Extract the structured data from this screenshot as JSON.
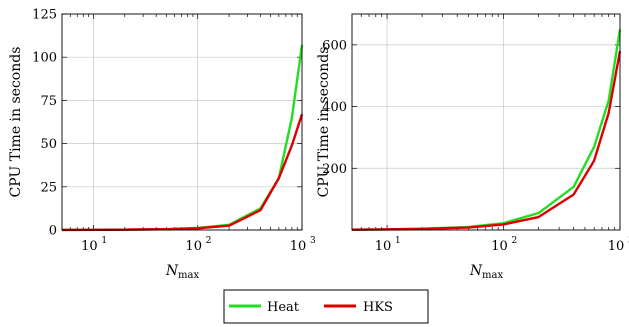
{
  "chart_data": [
    {
      "type": "line",
      "ylabel": "CPU Time in seconds",
      "xlabel_main": "N",
      "xlabel_sub": "max",
      "xscale": "log",
      "xlim": [
        5,
        1000
      ],
      "ylim": [
        0,
        125
      ],
      "yticks": [
        0,
        25,
        50,
        75,
        100,
        125
      ],
      "grid": true,
      "series": [
        {
          "name": "Heat",
          "color": "#22dd22",
          "x": [
            5,
            10,
            20,
            50,
            100,
            200,
            400,
            600,
            800,
            1000
          ],
          "y": [
            0.05,
            0.1,
            0.2,
            0.5,
            1.2,
            3.0,
            12.5,
            30.0,
            65.0,
            107.0
          ]
        },
        {
          "name": "HKS",
          "color": "#dd0000",
          "x": [
            5,
            10,
            20,
            50,
            100,
            200,
            400,
            600,
            800,
            1000
          ],
          "y": [
            0.05,
            0.1,
            0.2,
            0.5,
            1.0,
            2.5,
            11.5,
            30.0,
            49.0,
            67.0
          ]
        }
      ]
    },
    {
      "type": "line",
      "ylabel": "CPU Time in seconds",
      "xlabel_main": "N",
      "xlabel_sub": "max",
      "xscale": "log",
      "xlim": [
        5,
        1000
      ],
      "ylim": [
        0,
        700
      ],
      "yticks": [
        200,
        400,
        600
      ],
      "grid": true,
      "series": [
        {
          "name": "Heat",
          "color": "#22dd22",
          "x": [
            5,
            10,
            20,
            50,
            100,
            200,
            400,
            600,
            800,
            1000
          ],
          "y": [
            1,
            2,
            4,
            10,
            22,
            55,
            140,
            270,
            420,
            650
          ]
        },
        {
          "name": "HKS",
          "color": "#dd0000",
          "x": [
            5,
            10,
            20,
            50,
            100,
            200,
            400,
            600,
            800,
            1000
          ],
          "y": [
            1,
            2,
            4,
            8,
            18,
            42,
            115,
            225,
            380,
            580
          ]
        }
      ]
    }
  ],
  "legend": {
    "placement": "bottom-center",
    "entries": [
      {
        "label": "Heat",
        "color": "#22dd22"
      },
      {
        "label": "HKS",
        "color": "#dd0000"
      }
    ]
  }
}
